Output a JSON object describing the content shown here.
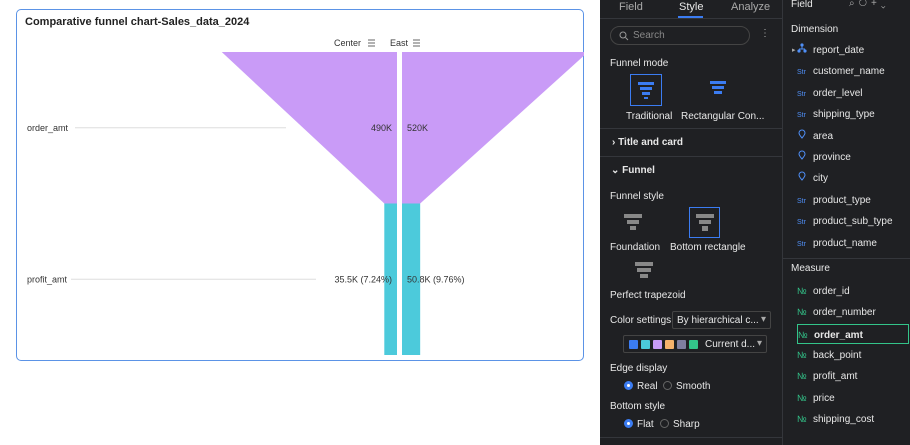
{
  "chart_data": {
    "type": "funnel",
    "title": "Comparative funnel chart-Sales_data_2024",
    "categories": [
      "order_amt",
      "profit_amt"
    ],
    "series": [
      {
        "name": "Center",
        "values": [
          490000,
          35500
        ],
        "value_labels": [
          "490K",
          "35.5K (7.24%)"
        ]
      },
      {
        "name": "East",
        "values": [
          520000,
          50800
        ],
        "value_labels": [
          "520K",
          "50.8K (9.76%)"
        ]
      }
    ],
    "colors": [
      "#c99bf7",
      "#4ccadb"
    ]
  },
  "style_panel": {
    "tabs": [
      "Field",
      "Style",
      "Analyze"
    ],
    "search": "Search",
    "funnel_mode": {
      "title": "Funnel mode",
      "options": [
        "Traditional",
        "Rectangular Con..."
      ]
    },
    "title_and_card": "Title and card",
    "funnel": "Funnel",
    "funnel_style": {
      "title": "Funnel style",
      "options": [
        "Foundation",
        "Bottom rectangle",
        "Perfect trapezoid"
      ]
    },
    "color_settings": {
      "title": "Color settings",
      "select": "By hierarchical c...",
      "palette": "Current d...",
      "swatches": [
        "#3b7cf2",
        "#4bcadb",
        "#c99bf7",
        "#f5b26b",
        "#7f7fa0",
        "#33c48a"
      ]
    },
    "edge_display": {
      "title": "Edge display",
      "options": [
        "Real",
        "Smooth"
      ]
    },
    "bottom_style": {
      "title": "Bottom style",
      "options": [
        "Flat",
        "Sharp"
      ]
    }
  },
  "field_panel": {
    "title": "Field",
    "dimension": {
      "title": "Dimension",
      "items": [
        {
          "label": "report_date",
          "expandable": true
        },
        {
          "icon": "Str",
          "label": "customer_name"
        },
        {
          "icon": "Str",
          "label": "order_level"
        },
        {
          "icon": "Str",
          "label": "shipping_type"
        },
        {
          "label": "area"
        },
        {
          "label": "province"
        },
        {
          "label": "city"
        },
        {
          "icon": "Str",
          "label": "product_type"
        },
        {
          "icon": "Str",
          "label": "product_sub_type"
        },
        {
          "icon": "Str",
          "label": "product_name"
        }
      ]
    },
    "measure": {
      "title": "Measure",
      "items": [
        {
          "icon": "№",
          "label": "order_id"
        },
        {
          "icon": "№",
          "label": "order_number"
        },
        {
          "icon": "№",
          "label": "order_amt",
          "selected": true
        },
        {
          "icon": "№",
          "label": "back_point"
        },
        {
          "icon": "№",
          "label": "profit_amt"
        },
        {
          "icon": "№",
          "label": "price"
        },
        {
          "icon": "№",
          "label": "shipping_cost"
        }
      ]
    }
  }
}
